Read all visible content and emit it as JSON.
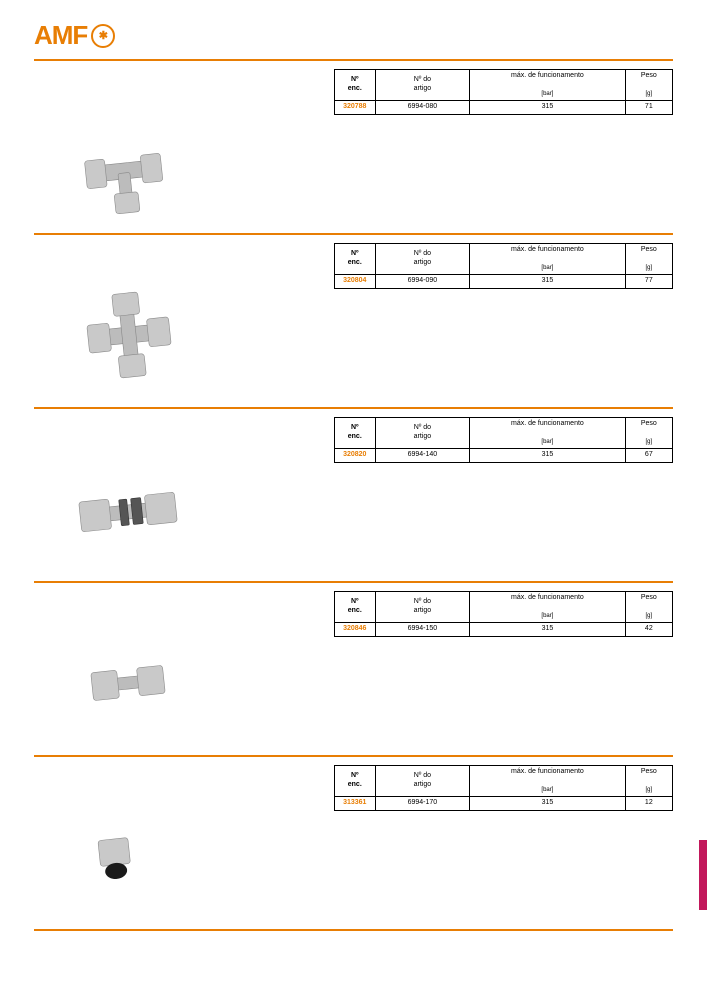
{
  "brand": {
    "name": "AMF",
    "color": "#e87e04"
  },
  "colors": {
    "rule": "#e87e04",
    "sidetab": "#c2185b",
    "highlight": "#e87e04"
  },
  "table_headers": {
    "col1_line1": "Nº",
    "col1_line2": "enc.",
    "col2_line1": "Nº do",
    "col2_line2": "artigo",
    "col3_line1": "máx. de funcionamento",
    "col3_unit": "[bar]",
    "col4_line1": "Peso",
    "col4_unit": "[g]"
  },
  "sections": [
    {
      "enc": "320788",
      "artigo": "6994-080",
      "bar": "315",
      "peso": "71",
      "img_key": "tee"
    },
    {
      "enc": "320804",
      "artigo": "6994-090",
      "bar": "315",
      "peso": "77",
      "img_key": "cross"
    },
    {
      "enc": "320820",
      "artigo": "6994-140",
      "bar": "315",
      "peso": "67",
      "img_key": "bulkhead"
    },
    {
      "enc": "320846",
      "artigo": "6994-150",
      "bar": "315",
      "peso": "42",
      "img_key": "union"
    },
    {
      "enc": "313361",
      "artigo": "6994-170",
      "bar": "315",
      "peso": "12",
      "img_key": "nut"
    }
  ]
}
